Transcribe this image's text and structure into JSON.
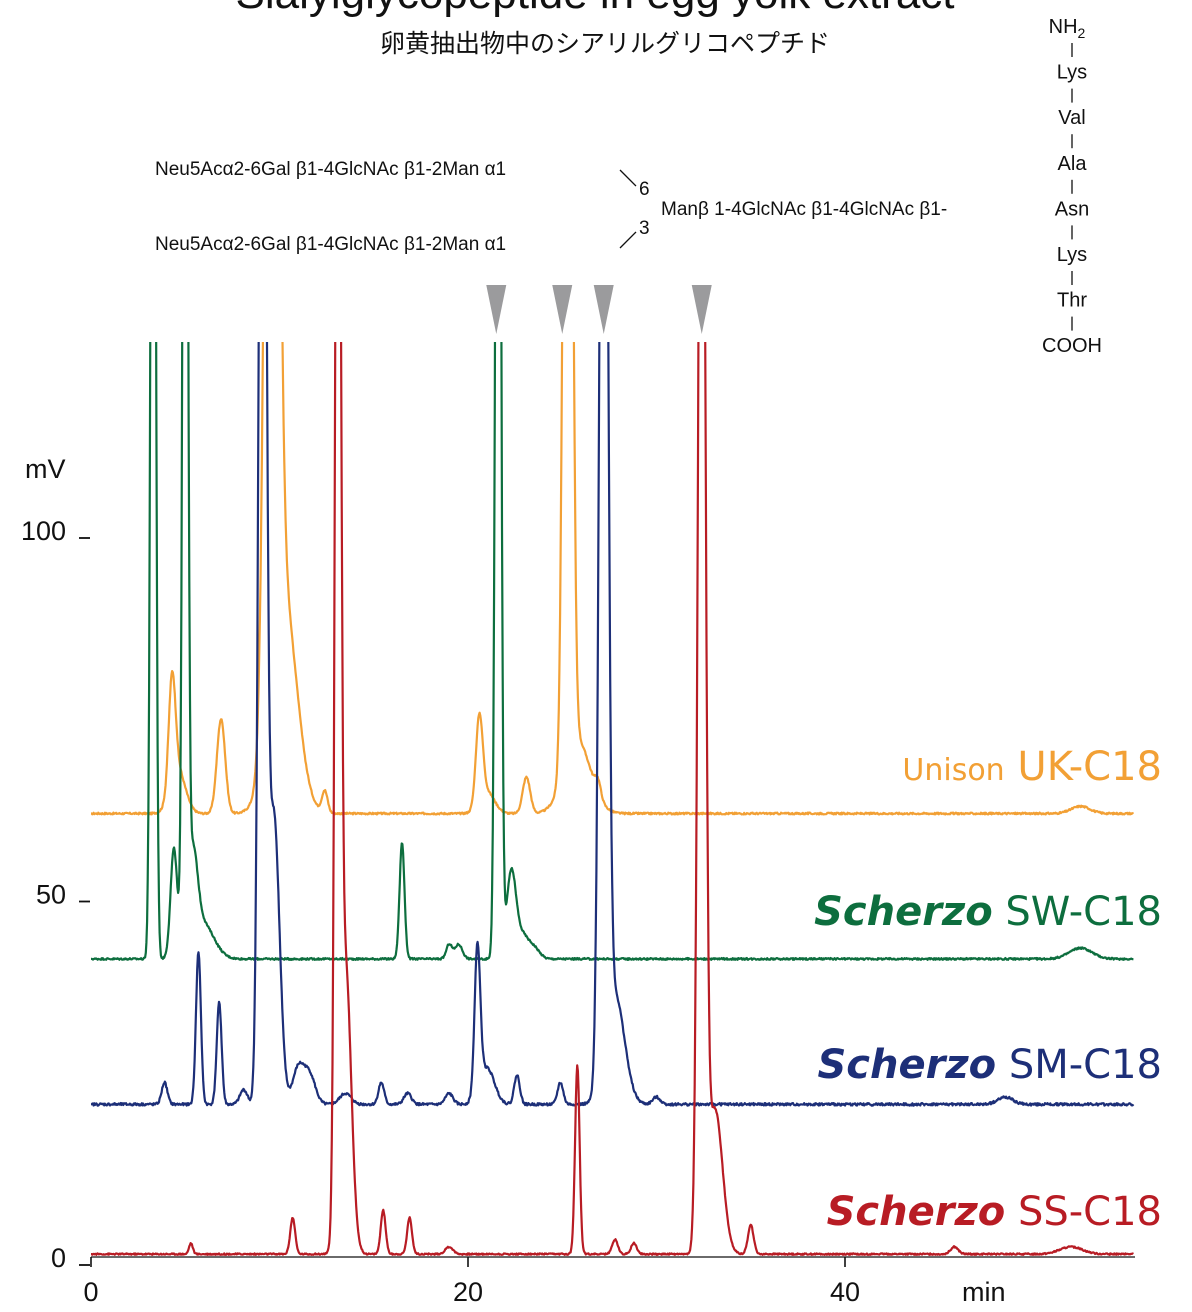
{
  "chart_data": {
    "type": "line",
    "title": "Sialylglycopeptide in egg yolk extract",
    "subtitle": "卵黄抽出物中のシアリルグリコペプチド",
    "xlabel": "min",
    "ylabel": "mV",
    "xlim": [
      0,
      55
    ],
    "ylim": [
      0,
      100
    ],
    "x_ticks": [
      "0",
      "20",
      "40"
    ],
    "x_tick_values": [
      0,
      20,
      40
    ],
    "y_ticks": [
      "0",
      "50",
      "100"
    ],
    "y_tick_values": [
      0,
      50,
      100
    ],
    "grid": false,
    "annotations": {
      "glycan_upper": "Neu5Acα2-6Gal β1-4GlcNAc β1-2Man α1",
      "glycan_lower": "Neu5Acα2-6Gal β1-4GlcNAc β1-2Man α1",
      "link_upper": "6",
      "link_lower": "3",
      "core": "Manβ 1-4GlcNAc β1-4GlcNAc β1-",
      "peptide": [
        "NH2",
        "Lys",
        "Val",
        "Ala",
        "Asn",
        "Lys",
        "Thr",
        "COOH"
      ],
      "marker_color": "#9b9b9d",
      "marker_times": [
        21.5,
        25.0,
        27.2,
        32.4
      ]
    },
    "series": [
      {
        "name": "Unison UK-C18",
        "name_parts": [
          "Unison",
          "UK-C18"
        ],
        "color": "#f2a035",
        "baseline": 61,
        "noise": 0.25,
        "peaks": [
          [
            4.3,
            15,
            0.18
          ],
          [
            4.6,
            6,
            0.4
          ],
          [
            6.9,
            13,
            0.22
          ],
          [
            9.6,
            200,
            0.3
          ],
          [
            10.2,
            30,
            0.7
          ],
          [
            12.4,
            3,
            0.15
          ],
          [
            20.6,
            12,
            0.18
          ],
          [
            21.0,
            3,
            0.4
          ],
          [
            23.1,
            5,
            0.2
          ],
          [
            25.3,
            200,
            0.2
          ],
          [
            25.8,
            10,
            0.7
          ],
          [
            26.9,
            2,
            0.15
          ],
          [
            52.5,
            1,
            0.5
          ]
        ],
        "points": []
      },
      {
        "name": "Scherzo SW-C18",
        "name_parts": [
          "Scherzo",
          "SW-C18"
        ],
        "color": "#0d6e3e",
        "baseline": 41,
        "noise": 0.25,
        "peaks": [
          [
            3.3,
            200,
            0.12
          ],
          [
            4.4,
            15,
            0.18
          ],
          [
            5.0,
            200,
            0.12
          ],
          [
            5.4,
            12,
            0.25
          ],
          [
            5.9,
            5,
            0.6
          ],
          [
            16.5,
            16,
            0.13
          ],
          [
            19.0,
            2,
            0.15
          ],
          [
            19.5,
            2,
            0.2
          ],
          [
            21.6,
            200,
            0.13
          ],
          [
            22.3,
            12,
            0.25
          ],
          [
            22.9,
            3,
            0.3
          ],
          [
            23.5,
            1.5,
            0.3
          ],
          [
            52.5,
            1.5,
            0.6
          ]
        ],
        "points": []
      },
      {
        "name": "Scherzo SM-C18",
        "name_parts": [
          "Scherzo",
          "SM-C18"
        ],
        "color": "#1d2f78",
        "baseline": 21,
        "noise": 0.35,
        "peaks": [
          [
            3.9,
            3,
            0.15
          ],
          [
            5.7,
            21,
            0.13
          ],
          [
            6.8,
            14,
            0.13
          ],
          [
            8.1,
            2,
            0.2
          ],
          [
            9.1,
            200,
            0.18
          ],
          [
            9.7,
            40,
            0.3
          ],
          [
            11.0,
            5,
            0.3
          ],
          [
            11.6,
            4,
            0.3
          ],
          [
            13.5,
            1.5,
            0.3
          ],
          [
            15.4,
            3,
            0.15
          ],
          [
            16.8,
            1.5,
            0.2
          ],
          [
            19.0,
            1.5,
            0.2
          ],
          [
            20.5,
            20,
            0.15
          ],
          [
            21.0,
            5,
            0.4
          ],
          [
            22.6,
            4,
            0.15
          ],
          [
            24.9,
            3,
            0.15
          ],
          [
            27.2,
            200,
            0.2
          ],
          [
            27.8,
            15,
            0.5
          ],
          [
            30.0,
            1,
            0.2
          ],
          [
            48.5,
            1,
            0.4
          ]
        ],
        "points": []
      },
      {
        "name": "Scherzo SS-C18",
        "name_parts": [
          "Scherzo",
          "SS-C18"
        ],
        "color": "#b81c24",
        "baseline": 0.4,
        "noise": 0.2,
        "peaks": [
          [
            5.3,
            1.5,
            0.1
          ],
          [
            10.7,
            5,
            0.13
          ],
          [
            13.1,
            200,
            0.14
          ],
          [
            13.5,
            40,
            0.3
          ],
          [
            15.5,
            6,
            0.13
          ],
          [
            16.9,
            5,
            0.13
          ],
          [
            19.0,
            1,
            0.2
          ],
          [
            25.8,
            26,
            0.12
          ],
          [
            27.8,
            2,
            0.15
          ],
          [
            28.8,
            1.5,
            0.15
          ],
          [
            32.4,
            200,
            0.18
          ],
          [
            33.1,
            20,
            0.4
          ],
          [
            35.0,
            4,
            0.15
          ],
          [
            45.8,
            1,
            0.2
          ],
          [
            52.0,
            1,
            0.6
          ]
        ],
        "points": []
      }
    ]
  }
}
